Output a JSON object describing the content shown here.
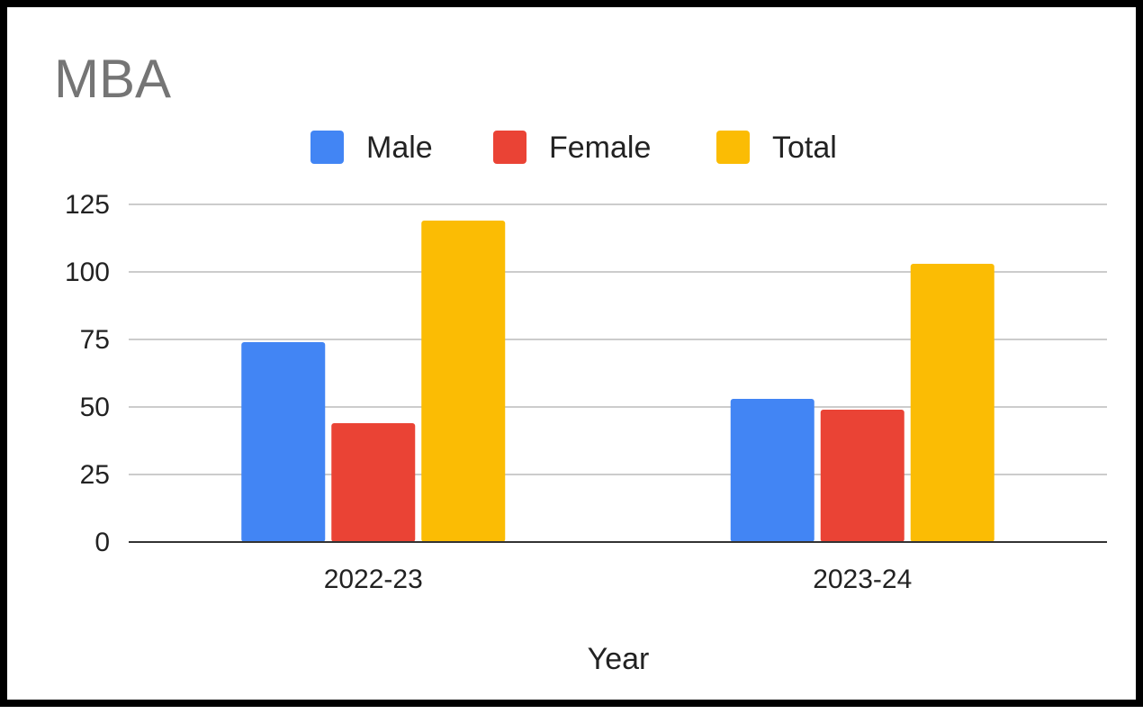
{
  "chart_data": {
    "type": "bar",
    "title": "MBA",
    "xlabel": "Year",
    "ylabel": "",
    "categories": [
      "2022-23",
      "2023-24"
    ],
    "series": [
      {
        "name": "Male",
        "values": [
          74,
          53
        ],
        "color": "#4285f4"
      },
      {
        "name": "Female",
        "values": [
          44,
          49
        ],
        "color": "#ea4335"
      },
      {
        "name": "Total",
        "values": [
          119,
          103
        ],
        "color": "#fbbc04"
      }
    ],
    "yticks": [
      "0",
      "25",
      "50",
      "75",
      "100",
      "125"
    ],
    "ylim": [
      0,
      125
    ],
    "grid": true,
    "legend_position": "top"
  }
}
